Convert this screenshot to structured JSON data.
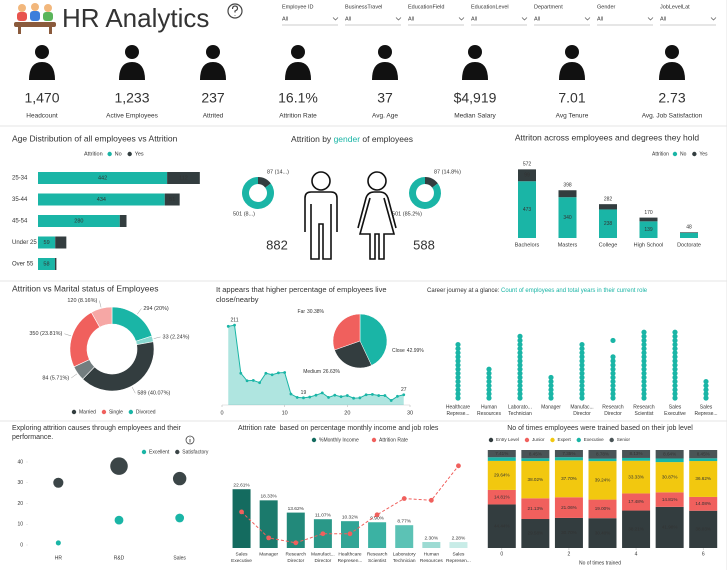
{
  "header": {
    "title": "HR Analytics"
  },
  "filters": [
    {
      "label": "Employee ID",
      "value": "All"
    },
    {
      "label": "BusinessTravel",
      "value": "All"
    },
    {
      "label": "EducationField",
      "value": "All"
    },
    {
      "label": "EducationLevel",
      "value": "All"
    },
    {
      "label": "Department",
      "value": "All"
    },
    {
      "label": "Gender",
      "value": "All"
    },
    {
      "label": "JobLevelLat",
      "value": "All"
    }
  ],
  "kpis": [
    {
      "value": "1,470",
      "label": "Headcount",
      "color": "#222222"
    },
    {
      "value": "1,233",
      "label": "Active Employees",
      "color": "#1ab5a6"
    },
    {
      "value": "237",
      "label": "Attrited",
      "color": "#f0605d"
    },
    {
      "value": "16.1%",
      "label": "Attrition Rate",
      "color": "#222222"
    },
    {
      "value": "37",
      "label": "Avg. Age",
      "color": "#222222"
    },
    {
      "value": "$4,919",
      "label": "Median Salary",
      "color": "#222222"
    },
    {
      "value": "7.01",
      "label": "Avg Tenure",
      "color": "#222222"
    },
    {
      "value": "2.73",
      "label": "Avg. Job Satisfaction",
      "color": "#222222"
    }
  ],
  "chart_data": [
    {
      "type": "hbar-stacked",
      "title": "Age Distribution of all employees vs Attrition",
      "legend_title": "Attrition",
      "categories": [
        "25-34",
        "35-44",
        "45-54",
        "Under 25",
        "Over 55"
      ],
      "series": [
        {
          "name": "No",
          "color": "#1ab5a6",
          "values": [
            442,
            434,
            280,
            59,
            58
          ]
        },
        {
          "name": "Yes",
          "color": "#333d3f",
          "values": [
            112,
            51,
            23,
            38,
            5
          ]
        }
      ],
      "xlim": [
        0,
        760
      ]
    },
    {
      "type": "donut-pair",
      "title_parts": [
        {
          "text": "Attrition by ",
          "color": "#333333"
        },
        {
          "text": "gender",
          "color": "#1ab5a6"
        },
        {
          "text": " of employees",
          "color": "#333333"
        }
      ],
      "colors": [
        "#333d3f",
        "#1ab5a6"
      ],
      "groups": [
        {
          "total": 882,
          "values": [
            87,
            501
          ],
          "value_labels": [
            "87 (14...)",
            "501 (8...)"
          ]
        },
        {
          "total": 588,
          "values": [
            87,
            501
          ],
          "value_labels": [
            "87 (14.8%)",
            "501 (85.2%)"
          ]
        }
      ]
    },
    {
      "type": "column-stacked",
      "title": "Attriton across employees and degrees they hold",
      "legend_title": "Attrition",
      "categories": [
        "Bachelors",
        "Masters",
        "College",
        "High School",
        "Doctorate"
      ],
      "series": [
        {
          "name": "No",
          "color": "#1ab5a6",
          "values": [
            473,
            340,
            238,
            139,
            43
          ]
        },
        {
          "name": "Yes",
          "color": "#333d3f",
          "values": [
            99,
            58,
            44,
            31,
            5
          ]
        }
      ],
      "totals": [
        572,
        398,
        282,
        170,
        48
      ],
      "ylim": [
        0,
        650
      ]
    },
    {
      "type": "donut",
      "title": "Attrition vs Marital status of Employees",
      "values": [
        294,
        33,
        589,
        84,
        350,
        120
      ],
      "value_labels": [
        "294 (20%)",
        "33 (2.24%)",
        "589 (40.07%)",
        "84 (5.71%)",
        "350 (23.81%)",
        "120 (8.16%)"
      ],
      "colors": [
        "#1ab5a6",
        "#86d8cf",
        "#333d3f",
        "#737d7f",
        "#f0605d",
        "#f6a7a5"
      ],
      "legend": [
        {
          "name": "Married",
          "color": "#333d3f"
        },
        {
          "name": "Single",
          "color": "#f0605d"
        },
        {
          "name": "Divorced",
          "color": "#1ab5a6"
        }
      ]
    },
    {
      "type": "area",
      "title_lines": [
        "It appears that higher percentage of employees live",
        "close/nearby"
      ],
      "x": [
        1,
        2,
        3,
        4,
        5,
        6,
        7,
        8,
        9,
        10,
        11,
        12,
        13,
        14,
        15,
        16,
        17,
        18,
        19,
        20,
        21,
        22,
        23,
        24,
        25,
        26,
        27,
        28,
        29
      ],
      "values": [
        208,
        211,
        84,
        64,
        65,
        59,
        84,
        80,
        85,
        86,
        29,
        20,
        19,
        21,
        26,
        32,
        20,
        26,
        22,
        25,
        18,
        19,
        27,
        28,
        25,
        25,
        12,
        23,
        27
      ],
      "value_labels": [
        null,
        "211",
        null,
        null,
        null,
        null,
        null,
        null,
        null,
        null,
        null,
        null,
        "19",
        null,
        null,
        null,
        null,
        null,
        null,
        null,
        null,
        null,
        null,
        null,
        null,
        null,
        null,
        null,
        "27"
      ],
      "color": "#1ab5a6",
      "xlim": [
        0,
        30
      ],
      "xticks": [
        0,
        10,
        20,
        30
      ],
      "ylim": [
        0,
        230
      ],
      "pie": {
        "categories": [
          "Close",
          "Medium",
          "Far"
        ],
        "values": [
          42.99,
          26.63,
          30.38
        ],
        "value_labels": [
          "42.99%",
          "26.63%",
          "30.38%"
        ],
        "colors": [
          "#1ab5a6",
          "#333d3f",
          "#f0605d"
        ]
      }
    },
    {
      "type": "strip",
      "title_parts": [
        {
          "text": "Career journey at a glance: ",
          "color": "#333333"
        },
        {
          "text": "Count of employees and total years in their current role",
          "color": "#1ab5a6"
        }
      ],
      "categories": [
        [
          "Healthcare",
          "Represe..."
        ],
        [
          "Human",
          "Resources"
        ],
        [
          "Laborato...",
          "Technician"
        ],
        [
          "Manager"
        ],
        [
          "Manufac...",
          "Director"
        ],
        [
          "Research",
          "Director"
        ],
        [
          "Research",
          "Scientist"
        ],
        [
          "Sales",
          "Executive"
        ],
        [
          "Sales",
          "Represe..."
        ]
      ],
      "values": [
        [
          0,
          1,
          2,
          3,
          4,
          5,
          6,
          7,
          8,
          9,
          10,
          11,
          12,
          13
        ],
        [
          0,
          1,
          2,
          3,
          4,
          5,
          6,
          7
        ],
        [
          0,
          1,
          2,
          3,
          4,
          5,
          6,
          7,
          8,
          9,
          10,
          11,
          12,
          13,
          14,
          15
        ],
        [
          0,
          1,
          2,
          3,
          4,
          5
        ],
        [
          0,
          1,
          2,
          3,
          4,
          5,
          6,
          7,
          8,
          9,
          10,
          11,
          12,
          13
        ],
        [
          0,
          1,
          2,
          3,
          4,
          5,
          6,
          7,
          8,
          9,
          10,
          14
        ],
        [
          0,
          1,
          2,
          3,
          4,
          5,
          6,
          7,
          8,
          9,
          10,
          11,
          12,
          13,
          14,
          15,
          16
        ],
        [
          0,
          1,
          2,
          3,
          4,
          5,
          6,
          7,
          8,
          9,
          10,
          11,
          12,
          13,
          14,
          15,
          16
        ],
        [
          0,
          1,
          2,
          3,
          4
        ]
      ],
      "color": "#1ab5a6",
      "ylim": [
        0,
        18
      ]
    },
    {
      "type": "bubble",
      "title_lines": [
        "Exploring attrition causes through employees and their",
        "performance."
      ],
      "categories": [
        "HR",
        "R&D",
        "Sales"
      ],
      "series": [
        {
          "name": "Excellent",
          "color": "#1ab5a6",
          "values": [
            1,
            12,
            13
          ],
          "sizes": [
            10,
            30,
            30
          ]
        },
        {
          "name": "Satisfactory",
          "color": "#3b4547",
          "values": [
            30,
            38,
            32
          ],
          "sizes": [
            40,
            120,
            70
          ]
        }
      ],
      "ylim": [
        0,
        40
      ],
      "yticks": [
        0,
        10,
        20,
        30,
        40
      ]
    },
    {
      "type": "bar-line",
      "title": "Attrition rate  based on percentage monthly income and job roles",
      "categories": [
        [
          "Sales",
          "Executive"
        ],
        [
          "Manager"
        ],
        [
          "Research",
          "Director"
        ],
        [
          "Manufact...",
          "Director"
        ],
        [
          "Healthcare",
          "Represen..."
        ],
        [
          "Research",
          "Scientist"
        ],
        [
          "Laboratory",
          "Technician"
        ],
        [
          "Human",
          "Resources"
        ],
        [
          "Sales",
          "Represen..."
        ]
      ],
      "series": [
        {
          "name": "%Monthly Income",
          "color": "#146b5f",
          "colors": [
            "#146b5f",
            "#1b7a6c",
            "#22897a",
            "#2a9888",
            "#32a596",
            "#3bb2a3",
            "#5cc2b5",
            "#9ddbd3",
            "#c8ece7"
          ],
          "values": [
            22.61,
            18.33,
            13.62,
            11.07,
            10.32,
            9.9,
            8.77,
            2.3,
            2.28
          ],
          "value_labels": [
            "22.61%",
            "18.33%",
            "13.62%",
            "11.07%",
            "10.32%",
            "9.90%",
            "8.77%",
            "2.30%",
            "2.28%"
          ]
        },
        {
          "name": "Attrition Rate",
          "color": "#f0605d",
          "axis": "y2",
          "values": [
            17.47,
            4.9,
            2.5,
            6.9,
            6.87,
            16.1,
            23.94,
            23.08,
            39.76
          ]
        }
      ],
      "ylim": [
        0,
        30
      ],
      "y2lim": [
        0,
        45
      ]
    },
    {
      "type": "stacked-100",
      "title": "No of times employees were trained based on their job level",
      "x": [
        0,
        1,
        2,
        3,
        4,
        5,
        6
      ],
      "xticks": [
        0,
        2,
        4,
        6
      ],
      "xlabel": "No of times trained",
      "series": [
        {
          "name": "Entry Level",
          "color": "#333d3f",
          "values": [
            44.44,
            29.58,
            30.7,
            30.4,
            38.21,
            41.98,
            38.03
          ],
          "value_labels": [
            "44.44%",
            "29.58%",
            "30.70%",
            "30.40%",
            "38.21%",
            "41.98%",
            "38.03%"
          ]
        },
        {
          "name": "Junior",
          "color": "#f0605d",
          "values": [
            14.81,
            21.13,
            21.06,
            19.0,
            17.48,
            14.81,
            14.08
          ],
          "value_labels": [
            "14.81%",
            "21.13%",
            "21.06%",
            "19.00%",
            "17.48%",
            "14.81%",
            "14.08%"
          ]
        },
        {
          "name": "Expert",
          "color": "#f2c80f",
          "values": [
            29.64,
            38.02,
            37.7,
            39.24,
            33.33,
            30.87,
            36.62
          ],
          "value_labels": [
            "29.64%",
            "38.02%",
            "37.70%",
            "39.24%",
            "33.33%",
            "30.87%",
            "36.62%"
          ]
        },
        {
          "name": "Executive",
          "color": "#1ab5a6",
          "values": [
            3.7,
            2.82,
            3.19,
            2.58,
            2.85,
            3.7,
            2.82
          ]
        },
        {
          "name": "Senior",
          "color": "#4a5456",
          "values": [
            7.41,
            8.45,
            7.35,
            8.78,
            8.13,
            8.64,
            8.45
          ],
          "value_labels": [
            "7.41%",
            "8.45%",
            "7.35%",
            "8.78%",
            "8.13%",
            "8.64%",
            "8.45%"
          ]
        }
      ],
      "ylim": [
        0,
        100
      ]
    }
  ]
}
